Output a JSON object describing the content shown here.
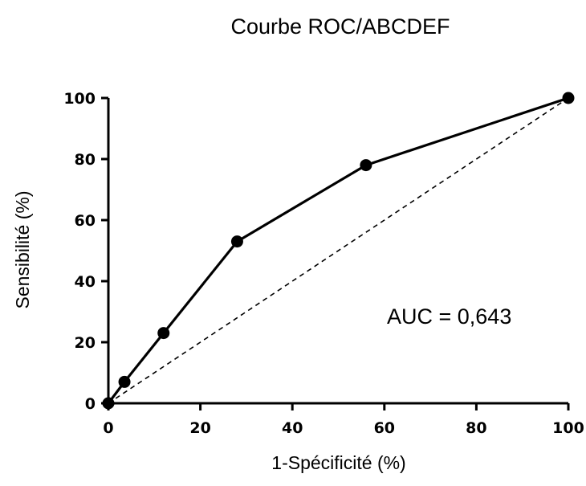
{
  "chart_data": {
    "type": "line",
    "title": "Courbe ROC/ABCDEF",
    "xlabel": "1-Spécificité (%)",
    "ylabel": "Sensibilité (%)",
    "xlim": [
      0,
      100
    ],
    "ylim": [
      0,
      100
    ],
    "x_ticks": [
      "0",
      "20",
      "40",
      "60",
      "80",
      "100"
    ],
    "y_ticks": [
      "0",
      "20",
      "40",
      "60",
      "80",
      "100"
    ],
    "grid": false,
    "series": [
      {
        "x": [
          0,
          3.5,
          12,
          28,
          56,
          100
        ],
        "y": [
          0,
          7,
          23,
          53,
          78,
          100
        ],
        "color": "#000000",
        "marker": "circle",
        "line_style": "solid"
      },
      {
        "x": [
          0,
          100
        ],
        "y": [
          0,
          100
        ],
        "color": "#000000",
        "marker": "none",
        "line_style": "dashed"
      }
    ],
    "annotations": [
      {
        "text": "AUC = 0,643",
        "x": 60,
        "y": 31
      }
    ]
  }
}
